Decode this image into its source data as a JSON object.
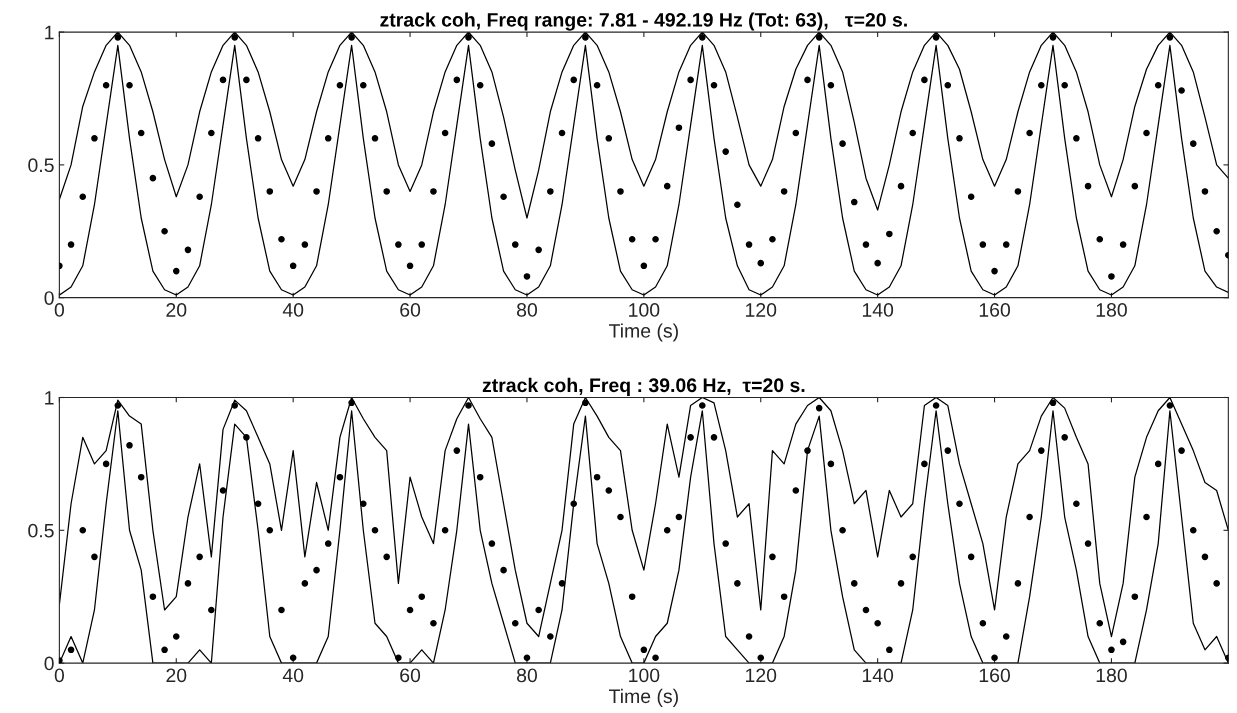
{
  "chart_data": [
    {
      "type": "scatter",
      "title": "ztrack coh, Freq range: 7.81 - 492.19 Hz (Tot: 63),   τ=20 s.",
      "xlabel": "Time (s)",
      "xlim": [
        0,
        200
      ],
      "xticks": [
        0,
        20,
        40,
        60,
        80,
        100,
        120,
        140,
        160,
        180
      ],
      "ylim": [
        0,
        1
      ],
      "yticks": [
        0,
        0.5,
        1
      ],
      "grid": false,
      "x": [
        0,
        2,
        4,
        6,
        8,
        10,
        12,
        14,
        16,
        18,
        20,
        22,
        24,
        26,
        28,
        30,
        32,
        34,
        36,
        38,
        40,
        42,
        44,
        46,
        48,
        50,
        52,
        54,
        56,
        58,
        60,
        62,
        64,
        66,
        68,
        70,
        72,
        74,
        76,
        78,
        80,
        82,
        84,
        86,
        88,
        90,
        92,
        94,
        96,
        98,
        100,
        102,
        104,
        106,
        108,
        110,
        112,
        114,
        116,
        118,
        120,
        122,
        124,
        126,
        128,
        130,
        132,
        134,
        136,
        138,
        140,
        142,
        144,
        146,
        148,
        150,
        152,
        154,
        156,
        158,
        160,
        162,
        164,
        166,
        168,
        170,
        172,
        174,
        176,
        178,
        180,
        182,
        184,
        186,
        188,
        190,
        192,
        194,
        196,
        198,
        200
      ],
      "series": [
        {
          "type": "line",
          "color": "#000000",
          "values": [
            0.37,
            0.5,
            0.72,
            0.85,
            0.95,
            1.0,
            0.95,
            0.85,
            0.7,
            0.52,
            0.38,
            0.5,
            0.7,
            0.85,
            0.95,
            1.0,
            0.95,
            0.85,
            0.7,
            0.52,
            0.42,
            0.52,
            0.7,
            0.85,
            0.95,
            1.0,
            0.95,
            0.85,
            0.7,
            0.5,
            0.4,
            0.5,
            0.7,
            0.85,
            0.95,
            1.0,
            0.95,
            0.85,
            0.68,
            0.48,
            0.3,
            0.48,
            0.7,
            0.85,
            0.95,
            1.0,
            0.95,
            0.85,
            0.7,
            0.52,
            0.42,
            0.52,
            0.7,
            0.85,
            0.95,
            1.0,
            0.95,
            0.85,
            0.68,
            0.5,
            0.42,
            0.52,
            0.72,
            0.86,
            0.95,
            1.0,
            0.95,
            0.85,
            0.66,
            0.45,
            0.33,
            0.5,
            0.7,
            0.85,
            0.95,
            1.0,
            0.95,
            0.86,
            0.7,
            0.52,
            0.42,
            0.52,
            0.7,
            0.85,
            0.95,
            1.0,
            0.95,
            0.85,
            0.7,
            0.5,
            0.38,
            0.52,
            0.72,
            0.86,
            0.95,
            1.0,
            0.95,
            0.85,
            0.68,
            0.5,
            0.45
          ]
        },
        {
          "type": "line",
          "color": "#000000",
          "values": [
            0.01,
            0.04,
            0.12,
            0.35,
            0.65,
            0.95,
            0.6,
            0.3,
            0.1,
            0.03,
            0.01,
            0.04,
            0.12,
            0.35,
            0.65,
            0.95,
            0.6,
            0.3,
            0.1,
            0.03,
            0.01,
            0.04,
            0.12,
            0.35,
            0.65,
            0.95,
            0.6,
            0.3,
            0.1,
            0.03,
            0.01,
            0.04,
            0.12,
            0.35,
            0.65,
            0.95,
            0.6,
            0.3,
            0.1,
            0.03,
            0.01,
            0.04,
            0.12,
            0.35,
            0.65,
            0.95,
            0.6,
            0.3,
            0.1,
            0.03,
            0.01,
            0.04,
            0.12,
            0.35,
            0.65,
            0.95,
            0.6,
            0.3,
            0.12,
            0.03,
            0.01,
            0.04,
            0.12,
            0.35,
            0.65,
            0.95,
            0.6,
            0.3,
            0.1,
            0.03,
            0.01,
            0.04,
            0.12,
            0.35,
            0.65,
            0.95,
            0.6,
            0.3,
            0.1,
            0.03,
            0.01,
            0.04,
            0.12,
            0.35,
            0.65,
            0.95,
            0.6,
            0.3,
            0.1,
            0.03,
            0.01,
            0.04,
            0.12,
            0.35,
            0.65,
            0.95,
            0.6,
            0.3,
            0.1,
            0.04,
            0.02
          ]
        },
        {
          "marker": "circle",
          "color": "#000000",
          "values": [
            0.12,
            0.2,
            0.38,
            0.6,
            0.8,
            0.98,
            0.8,
            0.62,
            0.45,
            0.25,
            0.1,
            0.18,
            0.38,
            0.62,
            0.82,
            0.98,
            0.82,
            0.6,
            0.4,
            0.22,
            0.12,
            0.2,
            0.4,
            0.6,
            0.8,
            0.98,
            0.8,
            0.6,
            0.4,
            0.2,
            0.12,
            0.2,
            0.4,
            0.62,
            0.82,
            0.98,
            0.8,
            0.58,
            0.38,
            0.2,
            0.08,
            0.18,
            0.4,
            0.62,
            0.82,
            0.98,
            0.8,
            0.6,
            0.4,
            0.22,
            0.12,
            0.22,
            0.42,
            0.64,
            0.82,
            0.98,
            0.8,
            0.55,
            0.35,
            0.2,
            0.13,
            0.22,
            0.4,
            0.62,
            0.82,
            0.98,
            0.8,
            0.58,
            0.36,
            0.2,
            0.13,
            0.24,
            0.42,
            0.62,
            0.82,
            0.98,
            0.8,
            0.6,
            0.38,
            0.2,
            0.1,
            0.2,
            0.4,
            0.62,
            0.8,
            0.98,
            0.8,
            0.6,
            0.42,
            0.22,
            0.08,
            0.2,
            0.42,
            0.62,
            0.8,
            0.98,
            0.78,
            0.58,
            0.4,
            0.25,
            0.16
          ]
        }
      ]
    },
    {
      "type": "scatter",
      "title": "ztrack coh, Freq : 39.06 Hz,  τ=20 s.",
      "xlabel": "Time (s)",
      "xlim": [
        0,
        200
      ],
      "xticks": [
        0,
        20,
        40,
        60,
        80,
        100,
        120,
        140,
        160,
        180
      ],
      "ylim": [
        0,
        1
      ],
      "yticks": [
        0,
        0.5,
        1
      ],
      "grid": false,
      "x": [
        0,
        2,
        4,
        6,
        8,
        10,
        12,
        14,
        16,
        18,
        20,
        22,
        24,
        26,
        28,
        30,
        32,
        34,
        36,
        38,
        40,
        42,
        44,
        46,
        48,
        50,
        52,
        54,
        56,
        58,
        60,
        62,
        64,
        66,
        68,
        70,
        72,
        74,
        76,
        78,
        80,
        82,
        84,
        86,
        88,
        90,
        92,
        94,
        96,
        98,
        100,
        102,
        104,
        106,
        108,
        110,
        112,
        114,
        116,
        118,
        120,
        122,
        124,
        126,
        128,
        130,
        132,
        134,
        136,
        138,
        140,
        142,
        144,
        146,
        148,
        150,
        152,
        154,
        156,
        158,
        160,
        162,
        164,
        166,
        168,
        170,
        172,
        174,
        176,
        178,
        180,
        182,
        184,
        186,
        188,
        190,
        192,
        194,
        196,
        198,
        200
      ],
      "series": [
        {
          "type": "line",
          "color": "#000000",
          "values": [
            0.22,
            0.6,
            0.85,
            0.75,
            0.8,
            0.99,
            0.93,
            0.9,
            0.5,
            0.2,
            0.25,
            0.55,
            0.75,
            0.4,
            0.88,
            0.99,
            0.95,
            0.85,
            0.75,
            0.5,
            0.8,
            0.4,
            0.68,
            0.5,
            0.85,
            1.0,
            0.92,
            0.85,
            0.8,
            0.3,
            0.7,
            0.55,
            0.45,
            0.8,
            0.92,
            1.0,
            0.92,
            0.85,
            0.6,
            0.35,
            0.15,
            0.1,
            0.3,
            0.5,
            0.9,
            1.0,
            0.93,
            0.85,
            0.8,
            0.5,
            0.35,
            0.6,
            0.9,
            0.7,
            0.97,
            1.0,
            0.98,
            0.8,
            0.55,
            0.6,
            0.2,
            0.8,
            0.75,
            0.9,
            0.97,
            1.0,
            0.95,
            0.8,
            0.6,
            0.65,
            0.4,
            0.65,
            0.55,
            0.6,
            0.97,
            1.0,
            0.97,
            0.75,
            0.6,
            0.45,
            0.2,
            0.55,
            0.75,
            0.8,
            0.93,
            1.0,
            0.96,
            0.85,
            0.75,
            0.3,
            0.1,
            0.3,
            0.7,
            0.85,
            0.95,
            1.0,
            0.9,
            0.8,
            0.68,
            0.65,
            0.5
          ]
        },
        {
          "type": "line",
          "color": "#000000",
          "values": [
            0.0,
            0.1,
            0.0,
            0.2,
            0.6,
            0.95,
            0.5,
            0.35,
            0.0,
            0.0,
            0.0,
            0.0,
            0.05,
            0.0,
            0.55,
            0.9,
            0.85,
            0.5,
            0.1,
            0.0,
            0.0,
            0.0,
            0.0,
            0.1,
            0.5,
            0.95,
            0.5,
            0.15,
            0.1,
            0.0,
            0.0,
            0.05,
            0.0,
            0.2,
            0.5,
            0.9,
            0.5,
            0.3,
            0.15,
            0.0,
            0.0,
            0.0,
            0.0,
            0.2,
            0.6,
            0.93,
            0.45,
            0.3,
            0.1,
            0.0,
            0.0,
            0.1,
            0.15,
            0.35,
            0.7,
            0.95,
            0.45,
            0.1,
            0.05,
            0.0,
            0.0,
            0.0,
            0.1,
            0.35,
            0.8,
            0.93,
            0.5,
            0.25,
            0.05,
            0.0,
            0.0,
            0.0,
            0.0,
            0.2,
            0.6,
            0.95,
            0.6,
            0.3,
            0.1,
            0.0,
            0.0,
            0.0,
            0.0,
            0.25,
            0.55,
            0.95,
            0.55,
            0.35,
            0.1,
            0.0,
            0.0,
            0.0,
            0.0,
            0.2,
            0.45,
            0.95,
            0.55,
            0.15,
            0.05,
            0.1,
            0.0
          ]
        },
        {
          "marker": "circle",
          "color": "#000000",
          "values": [
            0.01,
            0.05,
            0.5,
            0.4,
            0.75,
            0.97,
            0.82,
            0.7,
            0.25,
            0.05,
            0.1,
            0.3,
            0.4,
            0.2,
            0.65,
            0.97,
            0.85,
            0.6,
            0.5,
            0.2,
            0.02,
            0.3,
            0.35,
            0.45,
            0.7,
            0.98,
            0.6,
            0.5,
            0.4,
            0.02,
            0.2,
            0.25,
            0.15,
            0.5,
            0.8,
            0.97,
            0.7,
            0.45,
            0.35,
            0.15,
            0.02,
            0.2,
            0.1,
            0.3,
            0.6,
            0.98,
            0.7,
            0.65,
            0.55,
            0.25,
            0.05,
            0.02,
            0.5,
            0.55,
            0.85,
            0.97,
            0.85,
            0.45,
            0.3,
            0.1,
            0.02,
            0.4,
            0.25,
            0.65,
            0.8,
            0.96,
            0.75,
            0.5,
            0.3,
            0.2,
            0.15,
            0.05,
            0.3,
            0.4,
            0.75,
            0.97,
            0.8,
            0.6,
            0.4,
            0.15,
            0.02,
            0.1,
            0.3,
            0.55,
            0.8,
            0.98,
            0.85,
            0.6,
            0.45,
            0.15,
            0.05,
            0.08,
            0.25,
            0.55,
            0.75,
            0.97,
            0.8,
            0.5,
            0.4,
            0.3,
            0.02
          ]
        }
      ]
    }
  ]
}
